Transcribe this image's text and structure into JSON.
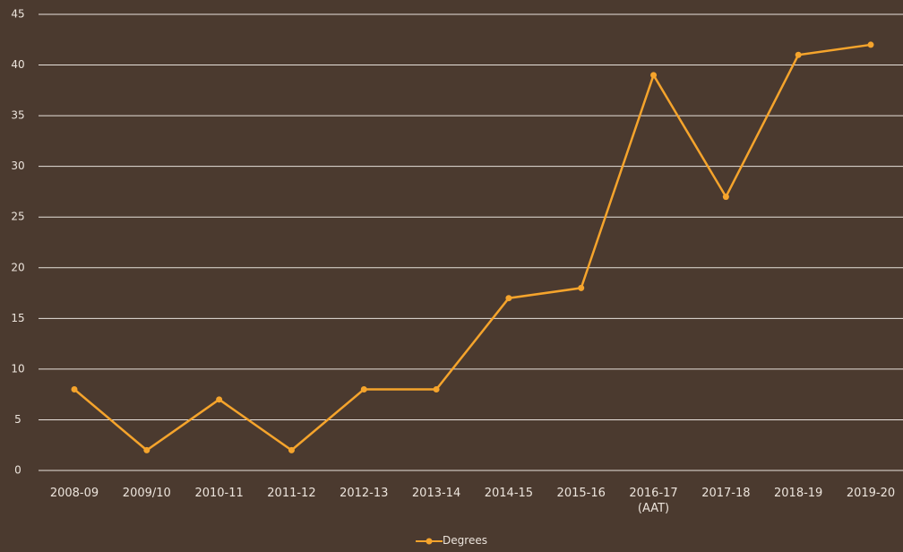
{
  "chart_data": {
    "type": "line",
    "categories": [
      "2008-09",
      "2009/10",
      "2010-11",
      "2011-12",
      "2012-13",
      "2013-14",
      "2014-15",
      "2015-16",
      "2016-17 (AAT)",
      "2017-18",
      "2018-19",
      "2019-20"
    ],
    "series": [
      {
        "name": "Degrees",
        "color": "#f5a42c",
        "values": [
          8,
          2,
          7,
          2,
          8,
          8,
          17,
          18,
          39,
          27,
          41,
          42
        ]
      }
    ],
    "ylim": [
      0,
      45
    ],
    "yticks": [
      0,
      5,
      10,
      15,
      20,
      25,
      30,
      35,
      40,
      45
    ],
    "grid": true,
    "legend": "bottom"
  }
}
